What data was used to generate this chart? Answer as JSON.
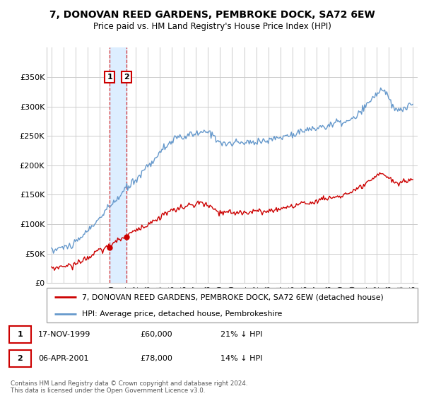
{
  "title": "7, DONOVAN REED GARDENS, PEMBROKE DOCK, SA72 6EW",
  "subtitle": "Price paid vs. HM Land Registry's House Price Index (HPI)",
  "legend_label_red": "7, DONOVAN REED GARDENS, PEMBROKE DOCK, SA72 6EW (detached house)",
  "legend_label_blue": "HPI: Average price, detached house, Pembrokeshire",
  "transaction1_label": "17-NOV-1999",
  "transaction1_price": "£60,000",
  "transaction1_hpi": "21% ↓ HPI",
  "transaction2_label": "06-APR-2001",
  "transaction2_price": "£78,000",
  "transaction2_hpi": "14% ↓ HPI",
  "footer": "Contains HM Land Registry data © Crown copyright and database right 2024.\nThis data is licensed under the Open Government Licence v3.0.",
  "ylim": [
    0,
    400000
  ],
  "yticks": [
    0,
    50000,
    100000,
    150000,
    200000,
    250000,
    300000,
    350000
  ],
  "ytick_labels": [
    "£0",
    "£50K",
    "£100K",
    "£150K",
    "£200K",
    "£250K",
    "£300K",
    "£350K"
  ],
  "red_color": "#cc0000",
  "blue_color": "#6699cc",
  "highlight_color": "#ddeeff",
  "grid_color": "#cccccc",
  "background_color": "#ffffff"
}
